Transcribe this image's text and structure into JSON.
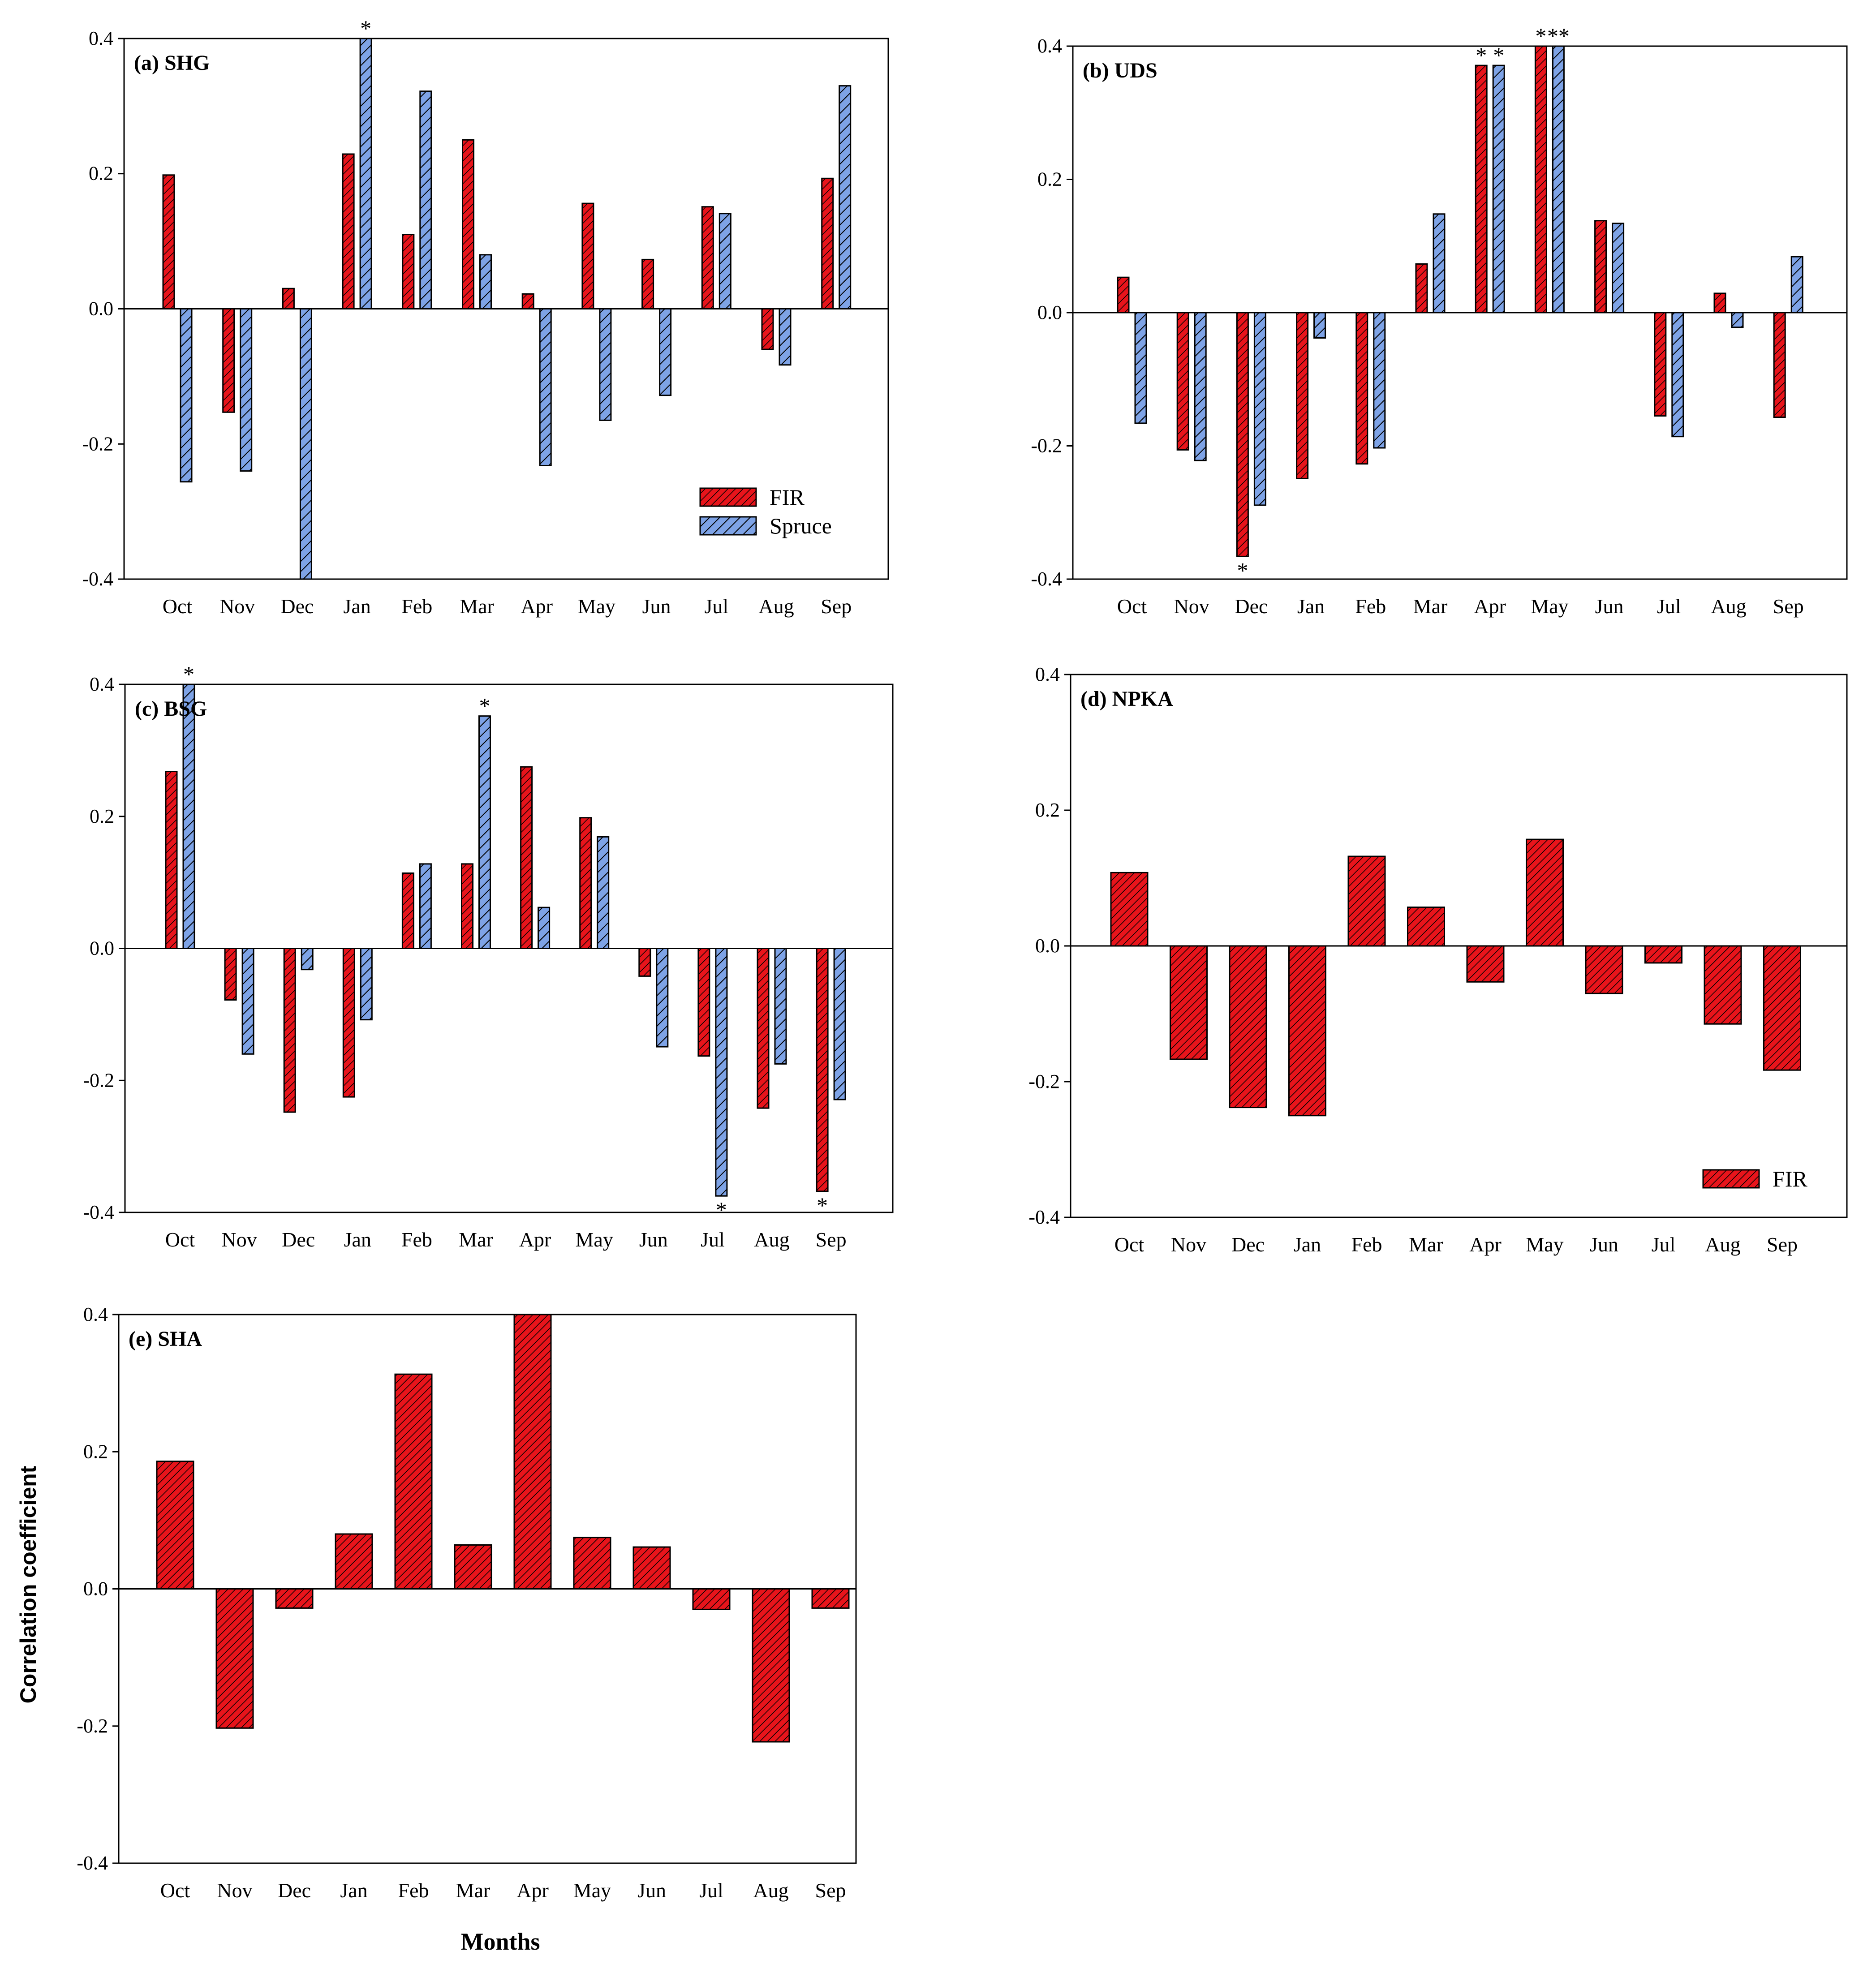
{
  "colors": {
    "fir_fill": "#e8141b",
    "spruce_fill": "#7ea3e6",
    "bar_stroke": "#000000"
  },
  "figure": {
    "xlabel": "Months",
    "ylabel": "Correlation coefficient"
  },
  "legend_labels": {
    "fir": "FIR",
    "spruce": "Spruce"
  },
  "chart_data": [
    {
      "panel": "(a) SHG",
      "type": "bar",
      "title": "(a) SHG",
      "categories": [
        "Oct",
        "Nov",
        "Dec",
        "Jan",
        "Feb",
        "Mar",
        "Apr",
        "May",
        "Jun",
        "Jul",
        "Aug",
        "Sep"
      ],
      "series": [
        {
          "name": "FIR",
          "values": [
            0.198,
            -0.153,
            0.03,
            0.229,
            0.11,
            0.25,
            0.022,
            0.156,
            0.073,
            0.151,
            -0.06,
            0.193
          ]
        },
        {
          "name": "Spruce",
          "values": [
            -0.256,
            -0.24,
            -0.4,
            0.4,
            0.322,
            0.08,
            -0.232,
            -0.165,
            -0.128,
            0.141,
            -0.083,
            0.33
          ]
        }
      ],
      "significance": [
        {
          "series": "Spruce",
          "category": "Jan",
          "mark": "*"
        }
      ],
      "ylim": [
        -0.4,
        0.4
      ],
      "yticks": [
        "-0.4",
        "-0.2",
        "0.0",
        "0.2",
        "0.4"
      ],
      "legend": "bottom-right",
      "grid": false
    },
    {
      "panel": "(b) UDS",
      "type": "bar",
      "title": "(b) UDS",
      "categories": [
        "Oct",
        "Nov",
        "Dec",
        "Jan",
        "Feb",
        "Mar",
        "Apr",
        "May",
        "Jun",
        "Jul",
        "Aug",
        "Sep"
      ],
      "series": [
        {
          "name": "FIR",
          "values": [
            0.053,
            -0.206,
            -0.366,
            -0.249,
            -0.227,
            0.073,
            0.371,
            0.4,
            0.138,
            -0.155,
            0.029,
            -0.157
          ]
        },
        {
          "name": "Spruce",
          "values": [
            -0.166,
            -0.222,
            -0.289,
            -0.038,
            -0.203,
            0.148,
            0.371,
            0.4,
            0.134,
            -0.186,
            -0.022,
            0.084
          ]
        }
      ],
      "significance": [
        {
          "series": "FIR",
          "category": "Dec",
          "mark": "*"
        },
        {
          "series": "FIR",
          "category": "Apr",
          "mark": "*"
        },
        {
          "series": "Spruce",
          "category": "Apr",
          "mark": "*"
        },
        {
          "series": "FIR",
          "category": "May",
          "mark": "*"
        },
        {
          "series": "Spruce",
          "category": "May",
          "mark": "**"
        }
      ],
      "ylim": [
        -0.4,
        0.4
      ],
      "yticks": [
        "-0.4",
        "-0.2",
        "0.0",
        "0.2",
        "0.4"
      ],
      "grid": false
    },
    {
      "panel": "(c) BSG",
      "type": "bar",
      "title": "(c) BSG",
      "categories": [
        "Oct",
        "Nov",
        "Dec",
        "Jan",
        "Feb",
        "Mar",
        "Apr",
        "May",
        "Jun",
        "Jul",
        "Aug",
        "Sep"
      ],
      "series": [
        {
          "name": "FIR",
          "values": [
            0.268,
            -0.078,
            -0.248,
            -0.225,
            0.114,
            0.128,
            0.275,
            0.198,
            -0.042,
            -0.163,
            -0.242,
            -0.368
          ]
        },
        {
          "name": "Spruce",
          "values": [
            0.4,
            -0.16,
            -0.032,
            -0.108,
            0.128,
            0.352,
            0.062,
            0.169,
            -0.149,
            -0.375,
            -0.175,
            -0.229
          ]
        }
      ],
      "significance": [
        {
          "series": "Spruce",
          "category": "Oct",
          "mark": "*"
        },
        {
          "series": "Spruce",
          "category": "Mar",
          "mark": "*"
        },
        {
          "series": "Spruce",
          "category": "Jul",
          "mark": "*"
        },
        {
          "series": "FIR",
          "category": "Sep",
          "mark": "*"
        }
      ],
      "ylim": [
        -0.4,
        0.4
      ],
      "yticks": [
        "-0.4",
        "-0.2",
        "0.0",
        "0.2",
        "0.4"
      ],
      "grid": false
    },
    {
      "panel": "(d) NPKA",
      "type": "bar",
      "title": "(d) NPKA",
      "categories": [
        "Oct",
        "Nov",
        "Dec",
        "Jan",
        "Feb",
        "Mar",
        "Apr",
        "May",
        "Jun",
        "Jul",
        "Aug",
        "Sep"
      ],
      "series": [
        {
          "name": "FIR",
          "values": [
            0.108,
            -0.167,
            -0.238,
            -0.25,
            0.132,
            0.057,
            -0.053,
            0.157,
            -0.07,
            -0.025,
            -0.115,
            -0.183
          ]
        }
      ],
      "ylim": [
        -0.4,
        0.4
      ],
      "yticks": [
        "-0.4",
        "-0.2",
        "0.0",
        "0.2",
        "0.4"
      ],
      "legend": "bottom-right",
      "grid": false
    },
    {
      "panel": "(e) SHA",
      "type": "bar",
      "title": "(e) SHA",
      "categories": [
        "Oct",
        "Nov",
        "Dec",
        "Jan",
        "Feb",
        "Mar",
        "Apr",
        "May",
        "Jun",
        "Jul",
        "Aug",
        "Sep"
      ],
      "series": [
        {
          "name": "FIR",
          "values": [
            0.186,
            -0.203,
            -0.028,
            0.08,
            0.313,
            0.064,
            0.4,
            0.075,
            0.061,
            -0.03,
            -0.223,
            -0.028
          ]
        }
      ],
      "ylim": [
        -0.4,
        0.4
      ],
      "yticks": [
        "-0.4",
        "-0.2",
        "0.0",
        "0.2",
        "0.4"
      ],
      "xlabel": "Months",
      "ylabel": "Correlation coefficient",
      "grid": false
    }
  ]
}
